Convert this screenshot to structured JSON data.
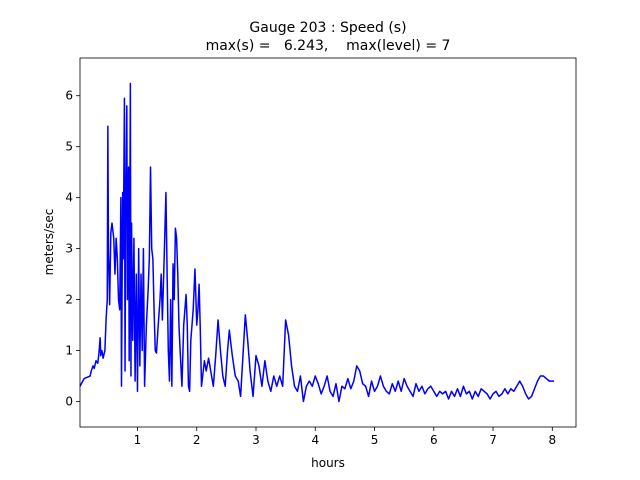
{
  "chart_data": {
    "type": "line",
    "title": "Gauge 203 : Speed (s)",
    "subtitle": "max(s) =   6.243,    max(level) = 7",
    "x_label": "hours",
    "y_label": "meters/sec",
    "xlim": [
      0.03,
      8.4
    ],
    "ylim": [
      -0.5,
      6.74
    ],
    "xticks": [
      1,
      2,
      3,
      4,
      5,
      6,
      7,
      8
    ],
    "yticks": [
      0,
      1,
      2,
      3,
      4,
      5,
      6
    ],
    "grid": false,
    "x": [
      0.03,
      0.1,
      0.2,
      0.22,
      0.25,
      0.27,
      0.3,
      0.33,
      0.35,
      0.37,
      0.38,
      0.4,
      0.42,
      0.45,
      0.47,
      0.49,
      0.5,
      0.51,
      0.53,
      0.55,
      0.57,
      0.6,
      0.62,
      0.64,
      0.66,
      0.68,
      0.7,
      0.72,
      0.73,
      0.75,
      0.76,
      0.78,
      0.79,
      0.8,
      0.82,
      0.83,
      0.85,
      0.86,
      0.88,
      0.89,
      0.9,
      0.92,
      0.94,
      0.96,
      0.98,
      1.0,
      1.02,
      1.04,
      1.06,
      1.08,
      1.1,
      1.12,
      1.15,
      1.18,
      1.2,
      1.22,
      1.24,
      1.26,
      1.28,
      1.3,
      1.32,
      1.35,
      1.38,
      1.4,
      1.42,
      1.45,
      1.48,
      1.5,
      1.52,
      1.54,
      1.56,
      1.58,
      1.6,
      1.62,
      1.64,
      1.66,
      1.68,
      1.7,
      1.72,
      1.75,
      1.78,
      1.8,
      1.82,
      1.84,
      1.86,
      1.88,
      1.9,
      1.92,
      1.94,
      1.97,
      2.0,
      2.02,
      2.04,
      2.06,
      2.08,
      2.1,
      2.13,
      2.16,
      2.2,
      2.25,
      2.28,
      2.32,
      2.36,
      2.4,
      2.44,
      2.48,
      2.52,
      2.55,
      2.6,
      2.65,
      2.7,
      2.74,
      2.78,
      2.82,
      2.86,
      2.9,
      2.95,
      3.0,
      3.05,
      3.1,
      3.15,
      3.2,
      3.25,
      3.3,
      3.35,
      3.4,
      3.45,
      3.5,
      3.55,
      3.6,
      3.65,
      3.7,
      3.75,
      3.8,
      3.85,
      3.9,
      3.95,
      4.0,
      4.05,
      4.1,
      4.15,
      4.2,
      4.25,
      4.3,
      4.35,
      4.4,
      4.45,
      4.5,
      4.55,
      4.6,
      4.65,
      4.7,
      4.75,
      4.8,
      4.85,
      4.9,
      4.95,
      5.0,
      5.05,
      5.1,
      5.15,
      5.2,
      5.25,
      5.3,
      5.35,
      5.4,
      5.45,
      5.5,
      5.55,
      5.6,
      5.65,
      5.7,
      5.75,
      5.8,
      5.85,
      5.9,
      5.95,
      6.0,
      6.05,
      6.1,
      6.15,
      6.2,
      6.25,
      6.3,
      6.35,
      6.4,
      6.45,
      6.5,
      6.55,
      6.6,
      6.65,
      6.7,
      6.75,
      6.8,
      6.85,
      6.9,
      6.95,
      7.0,
      7.05,
      7.1,
      7.15,
      7.2,
      7.25,
      7.3,
      7.35,
      7.4,
      7.45,
      7.5,
      7.55,
      7.6,
      7.65,
      7.7,
      7.75,
      7.8,
      7.85,
      7.9,
      7.95,
      8.03
    ],
    "series": [
      {
        "name": "s",
        "color": "#0000ff",
        "values": [
          0.3,
          0.45,
          0.5,
          0.6,
          0.7,
          0.65,
          0.8,
          0.75,
          0.95,
          1.25,
          0.9,
          1.0,
          0.85,
          1.0,
          1.6,
          2.0,
          5.4,
          3.0,
          1.9,
          3.3,
          3.5,
          3.2,
          2.5,
          3.2,
          2.8,
          2.0,
          1.8,
          4.0,
          0.3,
          4.1,
          2.8,
          5.95,
          0.6,
          3.4,
          5.8,
          2.0,
          4.6,
          0.8,
          6.24,
          0.5,
          3.5,
          1.2,
          3.2,
          0.4,
          2.5,
          0.2,
          3.0,
          0.7,
          2.5,
          1.0,
          3.0,
          0.3,
          1.5,
          2.2,
          2.8,
          4.6,
          3.0,
          2.8,
          1.8,
          1.0,
          0.95,
          1.5,
          2.0,
          2.5,
          1.6,
          2.8,
          4.1,
          2.5,
          1.0,
          0.4,
          2.0,
          0.3,
          2.7,
          2.0,
          3.4,
          3.2,
          2.5,
          1.5,
          1.0,
          0.3,
          1.5,
          1.8,
          2.1,
          1.5,
          0.3,
          0.2,
          1.2,
          1.5,
          1.8,
          2.6,
          1.5,
          1.8,
          2.3,
          1.4,
          0.3,
          0.5,
          0.8,
          0.6,
          0.85,
          0.5,
          0.3,
          0.9,
          1.6,
          1.0,
          0.5,
          0.3,
          1.0,
          1.4,
          0.9,
          0.5,
          0.4,
          0.1,
          0.9,
          1.7,
          1.2,
          0.6,
          0.1,
          0.9,
          0.7,
          0.3,
          0.8,
          0.4,
          0.2,
          0.5,
          0.3,
          0.5,
          0.3,
          1.6,
          1.3,
          0.7,
          0.3,
          0.2,
          0.5,
          0.0,
          0.3,
          0.4,
          0.3,
          0.5,
          0.35,
          0.15,
          0.3,
          0.5,
          0.2,
          0.1,
          0.35,
          0.0,
          0.3,
          0.25,
          0.45,
          0.25,
          0.4,
          0.7,
          0.6,
          0.35,
          0.3,
          0.1,
          0.4,
          0.2,
          0.3,
          0.5,
          0.3,
          0.2,
          0.15,
          0.35,
          0.2,
          0.4,
          0.2,
          0.45,
          0.3,
          0.2,
          0.1,
          0.35,
          0.2,
          0.3,
          0.15,
          0.25,
          0.3,
          0.2,
          0.1,
          0.2,
          0.15,
          0.2,
          0.05,
          0.2,
          0.1,
          0.25,
          0.1,
          0.3,
          0.15,
          0.2,
          0.05,
          0.2,
          0.1,
          0.25,
          0.2,
          0.15,
          0.05,
          0.15,
          0.2,
          0.1,
          0.15,
          0.25,
          0.15,
          0.25,
          0.2,
          0.3,
          0.4,
          0.3,
          0.15,
          0.05,
          0.1,
          0.25,
          0.4,
          0.5,
          0.5,
          0.45,
          0.4,
          0.4
        ]
      }
    ]
  }
}
